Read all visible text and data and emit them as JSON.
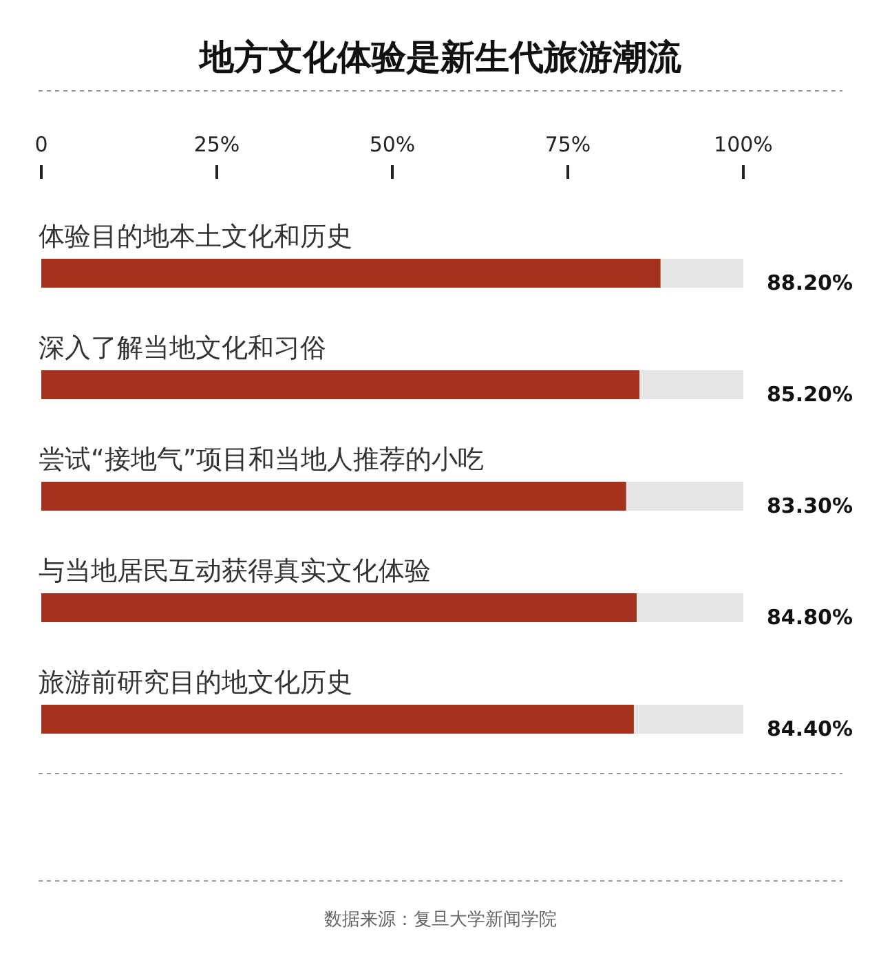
{
  "chart_data": {
    "type": "bar",
    "orientation": "horizontal",
    "title": "地方文化体验是新生代旅游潮流",
    "categories": [
      "体验目的地本土文化和历史",
      "深入了解当地文化和习俗",
      "尝试“接地气”项目和当地人推荐的小吃",
      "与当地居民互动获得真实文化体验",
      "旅游前研究目的地文化历史"
    ],
    "values": [
      88.2,
      85.2,
      83.3,
      84.8,
      84.4
    ],
    "value_labels": [
      "88.20%",
      "85.20%",
      "83.30%",
      "84.80%",
      "84.40%"
    ],
    "color": "#a5321f",
    "xlim": [
      0,
      100
    ],
    "xticks": [
      0,
      {
        "value": 25,
        "label": "25%"
      },
      {
        "value": 50,
        "label": "50%"
      },
      {
        "value": 75,
        "label": "75%"
      },
      {
        "value": 100,
        "label": "100%"
      }
    ],
    "grid": false,
    "annotations": [
      "数据来源：复旦大学新闻学院"
    ]
  }
}
